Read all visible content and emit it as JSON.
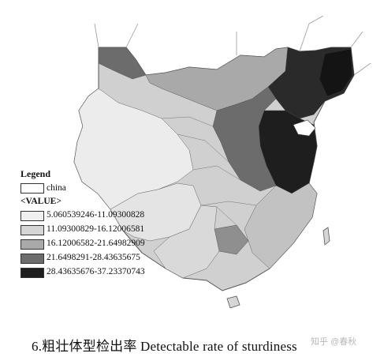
{
  "legend": {
    "title": "Legend",
    "base_layer": {
      "label": "china",
      "color": "#ffffff"
    },
    "field_label": "<VALUE>",
    "classes": [
      {
        "label": "5.060539246-11.09300828",
        "color": "#f0f0f0"
      },
      {
        "label": "11.09300829-16.12006581",
        "color": "#d6d6d6"
      },
      {
        "label": "16.12006582-21.64982909",
        "color": "#a9a9a9"
      },
      {
        "label": "21.6498291-28.43635675",
        "color": "#6c6c6c"
      },
      {
        "label": "28.43635676-37.23370743",
        "color": "#1e1e1e"
      }
    ]
  },
  "caption": "6.粗壮体型检出率 Detectable rate of sturdiness",
  "watermark": "知乎 @春秋"
}
